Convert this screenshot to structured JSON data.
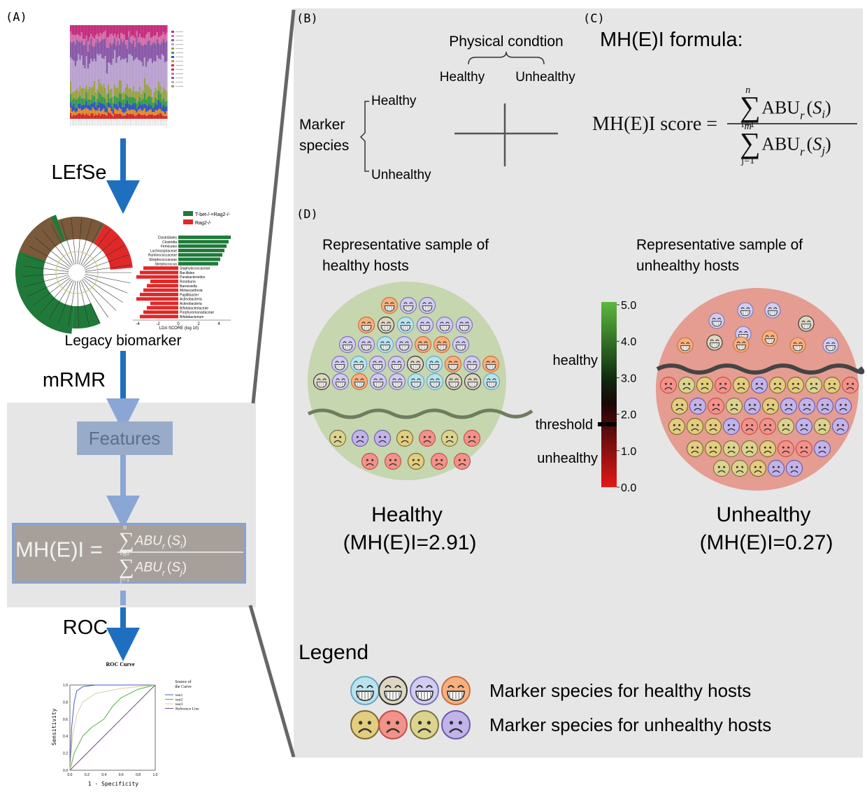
{
  "panel_a": {
    "label": "(A)",
    "step_1": "LEfSe",
    "step_2": "mRMR",
    "step_3": "ROC",
    "legacy_caption": "Legacy biomarker",
    "features": "Features",
    "formula": {
      "lhs": "MH(E)I =",
      "sum": "∑",
      "num_upper": "n",
      "num_lower": "i=1",
      "den_upper": "n",
      "den_lower": "j=1",
      "term": "ABU",
      "term_sub": "r",
      "open": "(",
      "arg": "S",
      "num_index": "i",
      "den_index": "j",
      "close": ")"
    },
    "lefse": {
      "groups": [
        "T-bet-/-×Rag2-/-",
        "Rag2-/-"
      ],
      "taxa": [
        "Clostridiales",
        "Clostridia",
        "Firmicutes",
        "Lachnospiraceae",
        "Ruminococcaceae",
        "Streptococcaceae",
        "Streptococcus",
        "Staphylococcaceae",
        "Bacillales",
        "Parabacteroides",
        "Roseburia",
        "Barnesiella",
        "Metascardovia",
        "Papillibacter",
        "Actinobacteria",
        "Actinobacteria",
        "Bifidobacteriaceae",
        "Porphyromonadaceae",
        "Bifidobacterium"
      ],
      "axis_label": "LDA SCORE (log 10)",
      "ticks": [
        "-4",
        "-2",
        "0",
        "2",
        "4"
      ]
    },
    "roc": {
      "title": "ROC Curve",
      "y_label": "Sensitivity",
      "x_label": "1 - Specificity",
      "legend_title": [
        "Source of",
        "the Curve"
      ],
      "legend": [
        "test1",
        "test2",
        "test3",
        "Reference Line"
      ],
      "ticks": [
        "0.0",
        "0.2",
        "0.4",
        "0.6",
        "0.8",
        "1.0"
      ]
    }
  },
  "panel_b": {
    "label": "(B)",
    "column_header": "Physical condtion",
    "columns": [
      "Healthy",
      "Unhealthy"
    ],
    "row_header": [
      "Marker",
      "species"
    ],
    "rows": [
      "Healthy",
      "Unhealthy"
    ]
  },
  "panel_c": {
    "label": "(C)",
    "title": "MH(E)I formula:",
    "formula": {
      "lhs": "MH(E)I score =",
      "sum": "∑",
      "num_upper": "n",
      "num_lower": "i=1",
      "den_upper": "m",
      "den_lower": "j=1",
      "term": "ABU",
      "term_sub": "r",
      "open": "(",
      "arg": "S",
      "num_index": "i",
      "den_index": "j",
      "close": ")"
    }
  },
  "panel_d": {
    "label": "(D)",
    "healthy_sample": [
      "Representative sample of",
      "healthy hosts"
    ],
    "unhealthy_sample": [
      "Representative sample of",
      "unhealthy hosts"
    ],
    "scale": {
      "ticks": [
        "5.0",
        "4.0",
        "3.0",
        "2.0",
        "1.0",
        "0.0"
      ],
      "healthy": "healthy",
      "threshold": "threshold",
      "unhealthy": "unhealthy"
    },
    "healthy_caption": [
      "Healthy",
      "(MH(E)I=2.91)"
    ],
    "unhealthy_caption": [
      "Unhealthy",
      "(MH(E)I=0.27)"
    ],
    "legend_title": "Legend",
    "legend": [
      "Marker species for healthy hosts",
      "Marker species for unhealthy hosts"
    ]
  }
}
